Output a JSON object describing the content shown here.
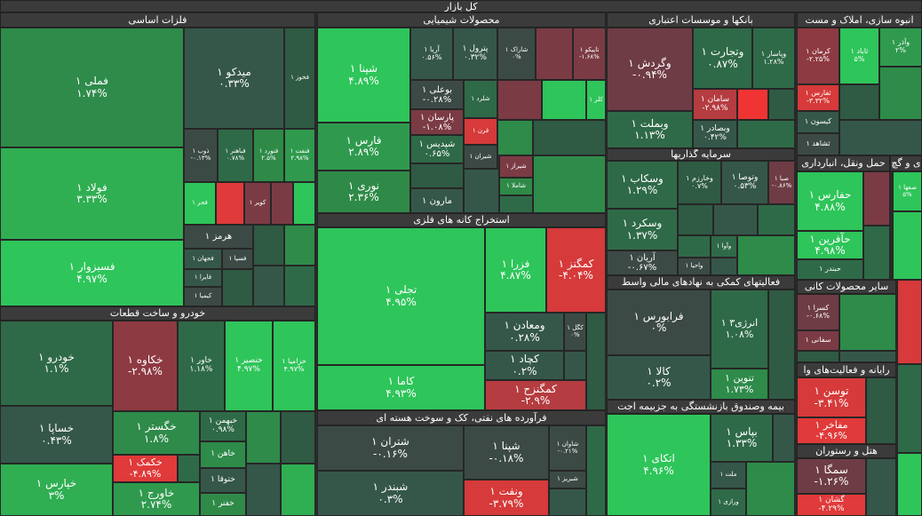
{
  "header": {
    "title": "کل بازار"
  },
  "sections": [
    {
      "title": "فلزات اساسی",
      "tiles": [
        {
          "label": "فملی ۱",
          "change": "۱.۷۴%",
          "color": "#2e8b4a"
        },
        {
          "label": "فولاد ۱",
          "change": "۳.۳۳%",
          "color": "#2fae52"
        },
        {
          "label": "فسبزوار ۱",
          "change": "۴.۹۷%",
          "color": "#2ec55a"
        },
        {
          "label": "میدکو ۱",
          "change": "۰.۳۳%",
          "color": "#35574a"
        },
        {
          "label": "فخوز ۱",
          "color": "#2f5a43"
        },
        {
          "label": "ذوب ۱",
          "change": "-۰.۱۳%",
          "color": "#3c4a45"
        },
        {
          "label": "فباهنر ۱",
          "change": "۰.۷۸%",
          "color": "#2f6a48"
        },
        {
          "label": "فنورد ۱",
          "change": "۲.۵%",
          "color": "#2f8a48"
        },
        {
          "label": "فنفت ۱",
          "change": "۲.۹۸%",
          "color": "#2f9a4e"
        },
        {
          "label": "فجر ۱",
          "color": "#2ec55a"
        },
        {
          "label": "کویر ۱",
          "color": "#7b3b44"
        },
        {
          "label": "هرمز ۱",
          "color": "#3c4a45"
        },
        {
          "label": "فجهان ۱",
          "color": "#35574a"
        },
        {
          "label": "فسپا ۱",
          "color": "#3c4a45"
        },
        {
          "label": "فایرا ۱",
          "color": "#35574a"
        },
        {
          "label": "کیمیا ۱",
          "color": "#3c4a45"
        }
      ]
    },
    {
      "title": "خودرو و ساخت قطعات",
      "tiles": [
        {
          "label": "خودرو ۱",
          "change": "۱.۱%",
          "color": "#2f6a48"
        },
        {
          "label": "خساپا ۱",
          "change": "۰.۴۳%",
          "color": "#35574a"
        },
        {
          "label": "خپارس ۱",
          "change": "۳%",
          "color": "#2fae52"
        },
        {
          "label": "خکاوه ۱",
          "change": "-۲.۹۸%",
          "color": "#8e3a42"
        },
        {
          "label": "خاور ۱",
          "change": "۱.۱۸%",
          "color": "#2f6a48"
        },
        {
          "label": "خنصیر ۱",
          "change": "۴.۹۷%",
          "color": "#2ec55a"
        },
        {
          "label": "خزامیا ۱",
          "change": "۴.۹۷%",
          "color": "#2ec55a"
        },
        {
          "label": "خگستر ۱",
          "change": "۱.۸%",
          "color": "#2e8b4a"
        },
        {
          "label": "خکمک ۱",
          "change": "-۴.۸۹%",
          "color": "#e03a3a"
        },
        {
          "label": "خاورج ۱",
          "change": "۲.۷۴%",
          "color": "#2f9a4e"
        },
        {
          "label": "خبهمن ۱",
          "change": "۰.۹۸%",
          "color": "#2f6a48"
        },
        {
          "label": "خاهن ۱",
          "color": "#2e8b4a"
        },
        {
          "label": "ختوقا ۱",
          "color": "#35574a"
        },
        {
          "label": "خفنر ۱",
          "color": "#2f8a48"
        }
      ]
    },
    {
      "title": "محصولات شیمیایی",
      "tiles": [
        {
          "label": "شپنا ۱",
          "change": "۴.۸۹%",
          "color": "#2ec55a"
        },
        {
          "label": "فارس ۱",
          "change": "۲.۸۹%",
          "color": "#2f9a4e"
        },
        {
          "label": "نوری ۱",
          "change": "۲.۳۶%",
          "color": "#2f8a48"
        },
        {
          "label": "آریا ۱",
          "change": "۰.۵۶%",
          "color": "#35574a"
        },
        {
          "label": "پترول ۱",
          "change": "۰.۳۲%",
          "color": "#35574a"
        },
        {
          "label": "شاراک ۱",
          "change": "۰%",
          "color": "#3c4a45"
        },
        {
          "label": "تاپیکو ۱",
          "change": "-۱.۶۸%",
          "color": "#7b3b44"
        },
        {
          "label": "بوعلی ۱",
          "change": "-۰.۲۸%",
          "color": "#3c4a45"
        },
        {
          "label": "پارسان ۱",
          "change": "-۱.۰۸%",
          "color": "#7b3b44"
        },
        {
          "label": "شپدیس ۱",
          "change": "۰.۶۵%",
          "color": "#2f6a48"
        },
        {
          "label": "مارون ۱",
          "color": "#35574a"
        },
        {
          "label": "شلرد ۱",
          "color": "#2f6a48"
        },
        {
          "label": "قرن ۱",
          "color": "#d63a3a"
        },
        {
          "label": "شیران ۱",
          "color": "#3c4a45"
        },
        {
          "label": "کلر ۱",
          "color": "#2ec55a"
        },
        {
          "label": "شیراز ۱",
          "color": "#7b3b44"
        },
        {
          "label": "شاملا ۱",
          "color": "#2f8a48"
        }
      ]
    },
    {
      "title": "استخراج کانه های فلزی",
      "tiles": [
        {
          "label": "تجلی ۱",
          "change": "۴.۹۵%",
          "color": "#2ec55a"
        },
        {
          "label": "کاما ۱",
          "change": "۴.۹۳%",
          "color": "#2ec55a"
        },
        {
          "label": "فزرا ۱",
          "change": "۴.۸۷%",
          "color": "#2ec55a"
        },
        {
          "label": "کمگنز ۱",
          "change": "-۴.۰۴%",
          "color": "#d63a3a"
        },
        {
          "label": "ومعادن ۱",
          "change": "۰.۲۸%",
          "color": "#35574a"
        },
        {
          "label": "کگل ۱",
          "change": "۰%",
          "color": "#3c4a45"
        },
        {
          "label": "کچاد ۱",
          "change": "۰.۲%",
          "color": "#35574a"
        },
        {
          "label": "کمگنزح ۱",
          "change": "-۲.۹%",
          "color": "#b53c40"
        }
      ]
    },
    {
      "title": "فرآورده های نفتی، کک و سوخت هسته ای",
      "tiles": [
        {
          "label": "شتران ۱",
          "change": "-۰.۱۶%",
          "color": "#3c4a45"
        },
        {
          "label": "شبندر ۱",
          "change": "۰.۳%",
          "color": "#35574a"
        },
        {
          "label": "شپنا ۱",
          "change": "-۰.۱۸%",
          "color": "#3c4a45"
        },
        {
          "label": "ونفت ۱",
          "change": "-۳.۷۹%",
          "color": "#d63a3a"
        },
        {
          "label": "شاوان ۱",
          "change": "-۰.۲۱%",
          "color": "#3c4a45"
        },
        {
          "label": "شبریز ۱",
          "color": "#3c4a45"
        }
      ]
    },
    {
      "title": "بانکها و موسسات اعتباری",
      "tiles": [
        {
          "label": "وگردش ۱",
          "change": "-۰.۹۴%",
          "color": "#6e3c45"
        },
        {
          "label": "وبملت ۱",
          "change": "۱.۱۳%",
          "color": "#2f6a48"
        },
        {
          "label": "وتجارت ۱",
          "change": "۰.۸۷%",
          "color": "#2f6a48"
        },
        {
          "label": "وپاسار ۱",
          "change": "۱.۲۸%",
          "color": "#2f6a48"
        },
        {
          "label": "سامان ۱",
          "change": "-۲.۹۸%",
          "color": "#b53c40"
        },
        {
          "label": "وبصادر ۱",
          "change": "۰.۴۲%",
          "color": "#35574a"
        }
      ]
    },
    {
      "title": "سرمایه گذاریها",
      "tiles": [
        {
          "label": "وسکاب ۱",
          "change": "۱.۲۹%",
          "color": "#2f6a48"
        },
        {
          "label": "وسکرد ۱",
          "change": "۱.۳۷%",
          "color": "#2f6a48"
        },
        {
          "label": "آریان ۱",
          "change": "-۰.۶۷%",
          "color": "#3c4a45"
        },
        {
          "label": "وخارزم ۱",
          "change": "۰.۷%",
          "color": "#2f5a43"
        },
        {
          "label": "وتوصا ۱",
          "change": "۰.۵۳%",
          "color": "#35574a"
        },
        {
          "label": "صبا ۱",
          "change": "-۰.۸۶%",
          "color": "#6e3c45"
        },
        {
          "label": "واحیا ۱",
          "color": "#3c4a45"
        },
        {
          "label": "وآوا ۱",
          "color": "#2f6a48"
        }
      ]
    },
    {
      "title": "فعالیتهای کمکی به نهادهای مالی واسط",
      "tiles": [
        {
          "label": "فرابورس ۱",
          "change": "۰%",
          "color": "#3c4a45"
        },
        {
          "label": "کالا ۱",
          "change": "۰.۲%",
          "color": "#35574a"
        },
        {
          "label": "انرژی۳ ۱",
          "change": "۱.۰۸%",
          "color": "#2f6a48"
        },
        {
          "label": "تنوین ۱",
          "change": "۱.۷۳%",
          "color": "#2e8b4a"
        }
      ]
    },
    {
      "title": "بیمه وصندوق بازنشستگی به جزبیمه اجت",
      "tiles": [
        {
          "label": "اتکای ۱",
          "change": "۴.۹۶%",
          "color": "#2ec55a"
        },
        {
          "label": "بپاس ۱",
          "change": "۱.۳۳%",
          "color": "#2f6a48"
        },
        {
          "label": "ملت ۱",
          "color": "#35574a"
        },
        {
          "label": "ورازی ۱",
          "color": "#2f6a48"
        }
      ]
    },
    {
      "title": "انبوه سازی، املاک و مست",
      "tiles": [
        {
          "label": "کرمان ۱",
          "change": "-۲.۲۵%",
          "color": "#8e3a42"
        },
        {
          "label": "ثاباد ۱",
          "change": "۵%",
          "color": "#2ec55a"
        },
        {
          "label": "وآذر ۱",
          "change": "۲%",
          "color": "#2f9a4e"
        },
        {
          "label": "ثفارس ۱",
          "change": "-۳.۳۲%",
          "color": "#d63a3a"
        },
        {
          "label": "کیسون ۱",
          "color": "#35574a"
        },
        {
          "label": "ثشاهد ۱",
          "color": "#3c4a45"
        }
      ]
    },
    {
      "title": "حمل ونقل، انبارداری",
      "tiles": [
        {
          "label": "حفارس ۱",
          "change": "۴.۸۸%",
          "color": "#2ec55a"
        },
        {
          "label": "حآفرین ۱",
          "change": "۴.۹۸%",
          "color": "#2ec55a"
        },
        {
          "label": "حبندر ۱",
          "color": "#2f6a48"
        }
      ]
    },
    {
      "title": "ی و گچ",
      "tiles": [
        {
          "label": "صفها ۱",
          "change": "۵%",
          "color": "#2ec55a"
        }
      ]
    },
    {
      "title": "سایر محصولات کانی",
      "tiles": [
        {
          "label": "کسرا ۱",
          "change": "-۰.۶۸%",
          "color": "#6e3c45"
        },
        {
          "label": "سفانی ۱",
          "color": "#7b3b44"
        }
      ]
    },
    {
      "title": "رایانه و فعالیت‌های وا",
      "tiles": [
        {
          "label": "توسن ۱",
          "change": "-۳.۴۱%",
          "color": "#d63a3a"
        },
        {
          "label": "مفاخر ۱",
          "change": "-۴.۹۶%",
          "color": "#e03a3a"
        }
      ]
    },
    {
      "title": "هتل و رستوران",
      "tiles": [
        {
          "label": "سمگا ۱",
          "change": "-۱.۲۶%",
          "color": "#6e3c45"
        },
        {
          "label": "گشان ۱",
          "change": "-۴.۲۹%",
          "color": "#e03a3a"
        }
      ]
    }
  ]
}
